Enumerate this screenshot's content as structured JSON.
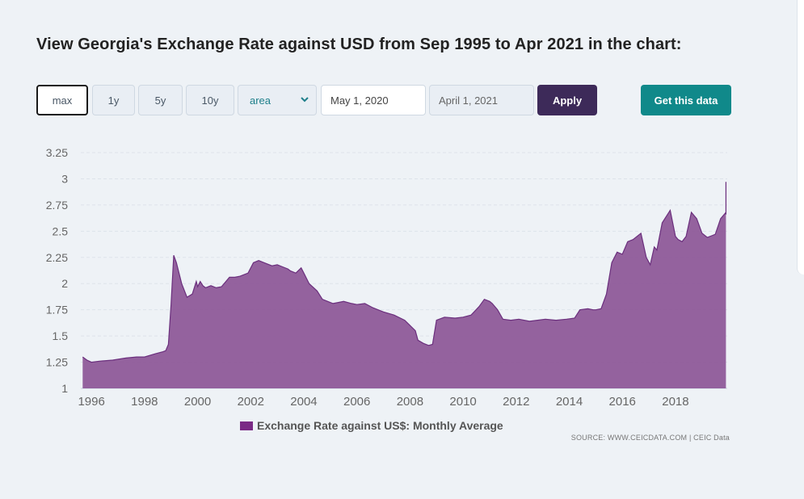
{
  "page": {
    "title": "View Georgia's Exchange Rate against USD from Sep 1995 to Apr 2021 in the chart:"
  },
  "controls": {
    "range_buttons": [
      "max",
      "1y",
      "5y",
      "10y"
    ],
    "active_range": "max",
    "chart_type": "area",
    "start_date": "May 1, 2020",
    "end_date": "April 1, 2021",
    "apply_label": "Apply",
    "get_data_label": "Get this data"
  },
  "colors": {
    "series_fill": "#8e5a99",
    "series_line": "#6b2f7d",
    "legend_swatch": "#7a2a85",
    "apply_button": "#3d2a59",
    "get_data_button": "#10898a"
  },
  "source": "SOURCE: WWW.CEICDATA.COM | CEIC Data",
  "chart_data": {
    "type": "area",
    "legend": "Exchange Rate against US$: Monthly Average",
    "legend_position": "bottom-center",
    "grid": true,
    "ylim": [
      1,
      3.25
    ],
    "yticks": [
      "1",
      "1.25",
      "1.5",
      "1.75",
      "2",
      "2.25",
      "2.5",
      "2.75",
      "3",
      "3.25"
    ],
    "xticks": [
      "1996",
      "1998",
      "2000",
      "2002",
      "2004",
      "2006",
      "2008",
      "2010",
      "2012",
      "2014",
      "2016",
      "2018"
    ],
    "xlim": [
      1995.67,
      2021.25
    ],
    "series": [
      {
        "name": "Exchange Rate against US$: Monthly Average",
        "x": [
          1995.67,
          1995.83,
          1996.0,
          1996.3,
          1996.8,
          1997.3,
          1997.7,
          1998.0,
          1998.4,
          1998.7,
          1998.8,
          1998.9,
          1999.0,
          1999.1,
          1999.2,
          1999.4,
          1999.6,
          1999.8,
          1999.95,
          2000.0,
          2000.1,
          2000.2,
          2000.3,
          2000.5,
          2000.7,
          2000.9,
          2001.2,
          2001.4,
          2001.6,
          2001.9,
          2002.1,
          2002.3,
          2002.5,
          2002.8,
          2003.0,
          2003.2,
          2003.4,
          2003.5,
          2003.7,
          2003.9,
          2004.0,
          2004.2,
          2004.5,
          2004.7,
          2004.9,
          2005.1,
          2005.3,
          2005.5,
          2005.8,
          2006.0,
          2006.3,
          2006.6,
          2007.0,
          2007.4,
          2007.8,
          2008.0,
          2008.2,
          2008.3,
          2008.5,
          2008.7,
          2008.85,
          2009.0,
          2009.3,
          2009.7,
          2010.0,
          2010.3,
          2010.6,
          2010.8,
          2011.0,
          2011.1,
          2011.3,
          2011.5,
          2011.8,
          2012.1,
          2012.5,
          2012.8,
          2013.1,
          2013.5,
          2013.9,
          2014.2,
          2014.4,
          2014.7,
          2014.9,
          2015.0,
          2015.2,
          2015.4,
          2015.6,
          2015.8,
          2016.0,
          2016.2,
          2016.4,
          2016.7,
          2016.9,
          2017.05,
          2017.2,
          2017.3,
          2017.5,
          2017.8,
          2018.0,
          2018.1,
          2018.25,
          2018.4,
          2018.6,
          2018.8,
          2019.0,
          2019.2,
          2019.4,
          2019.5,
          2019.7,
          2019.9,
          2020.1,
          2020.3,
          2020.5,
          2020.7,
          2020.9,
          2021.1,
          2021.25
        ],
        "values": [
          1.3,
          1.27,
          1.25,
          1.26,
          1.27,
          1.29,
          1.3,
          1.3,
          1.33,
          1.35,
          1.36,
          1.42,
          1.8,
          2.27,
          2.2,
          2.0,
          1.87,
          1.9,
          2.02,
          1.97,
          2.02,
          1.98,
          1.96,
          1.98,
          1.96,
          1.97,
          2.06,
          2.06,
          2.07,
          2.1,
          2.2,
          2.22,
          2.2,
          2.17,
          2.18,
          2.16,
          2.14,
          2.12,
          2.1,
          2.15,
          2.1,
          2.0,
          1.93,
          1.85,
          1.83,
          1.81,
          1.82,
          1.83,
          1.81,
          1.8,
          1.81,
          1.77,
          1.73,
          1.7,
          1.65,
          1.6,
          1.55,
          1.46,
          1.43,
          1.41,
          1.42,
          1.65,
          1.68,
          1.67,
          1.68,
          1.7,
          1.78,
          1.85,
          1.83,
          1.81,
          1.75,
          1.66,
          1.65,
          1.66,
          1.64,
          1.65,
          1.66,
          1.65,
          1.66,
          1.67,
          1.75,
          1.76,
          1.75,
          1.75,
          1.76,
          1.9,
          2.2,
          2.3,
          2.28,
          2.4,
          2.42,
          2.48,
          2.25,
          2.18,
          2.35,
          2.32,
          2.58,
          2.7,
          2.45,
          2.42,
          2.4,
          2.45,
          2.68,
          2.62,
          2.48,
          2.44,
          2.46,
          2.47,
          2.62,
          2.68,
          2.66,
          2.68,
          2.75,
          2.8,
          2.9,
          2.97,
          2.97
        ]
      }
    ]
  }
}
